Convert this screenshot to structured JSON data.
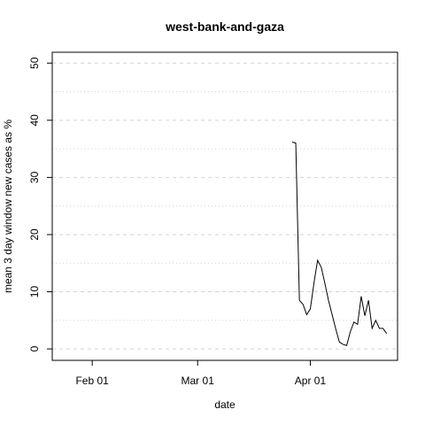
{
  "chart_data": {
    "type": "line",
    "title": "west-bank-and-gaza",
    "xlabel": "date",
    "ylabel": "mean  3  day window new cases as %",
    "x": [
      "03-27",
      "03-28",
      "03-29",
      "03-30",
      "03-31",
      "04-01",
      "04-02",
      "04-03",
      "04-04",
      "04-05",
      "04-06",
      "04-07",
      "04-08",
      "04-09",
      "04-10",
      "04-11",
      "04-12",
      "04-13",
      "04-14",
      "04-15",
      "04-16",
      "04-17",
      "04-18",
      "04-19",
      "04-20",
      "04-21",
      "04-22"
    ],
    "series": [
      {
        "name": "west-bank-and-gaza",
        "color": "#000000",
        "values": [
          36.2,
          36.0,
          8.5,
          7.8,
          6.0,
          7.0,
          11.5,
          15.5,
          14.3,
          11.5,
          8.5,
          6.0,
          3.5,
          1.2,
          0.8,
          0.6,
          3.0,
          4.7,
          4.3,
          9.2,
          5.8,
          8.5,
          3.6,
          5.0,
          3.6,
          3.6,
          2.7
        ]
      }
    ],
    "xlim": [
      "01-21",
      "04-25"
    ],
    "xticks": [
      {
        "value": "02-01",
        "label": "Feb 01"
      },
      {
        "value": "03-01",
        "label": "Mar 01"
      },
      {
        "value": "04-01",
        "label": "Apr 01"
      }
    ],
    "ylim": [
      -2,
      51.9
    ],
    "yticks": [
      0,
      10,
      20,
      30,
      40,
      50
    ],
    "yminor_grid": [
      5,
      15,
      25,
      35,
      45
    ],
    "grid": true
  }
}
